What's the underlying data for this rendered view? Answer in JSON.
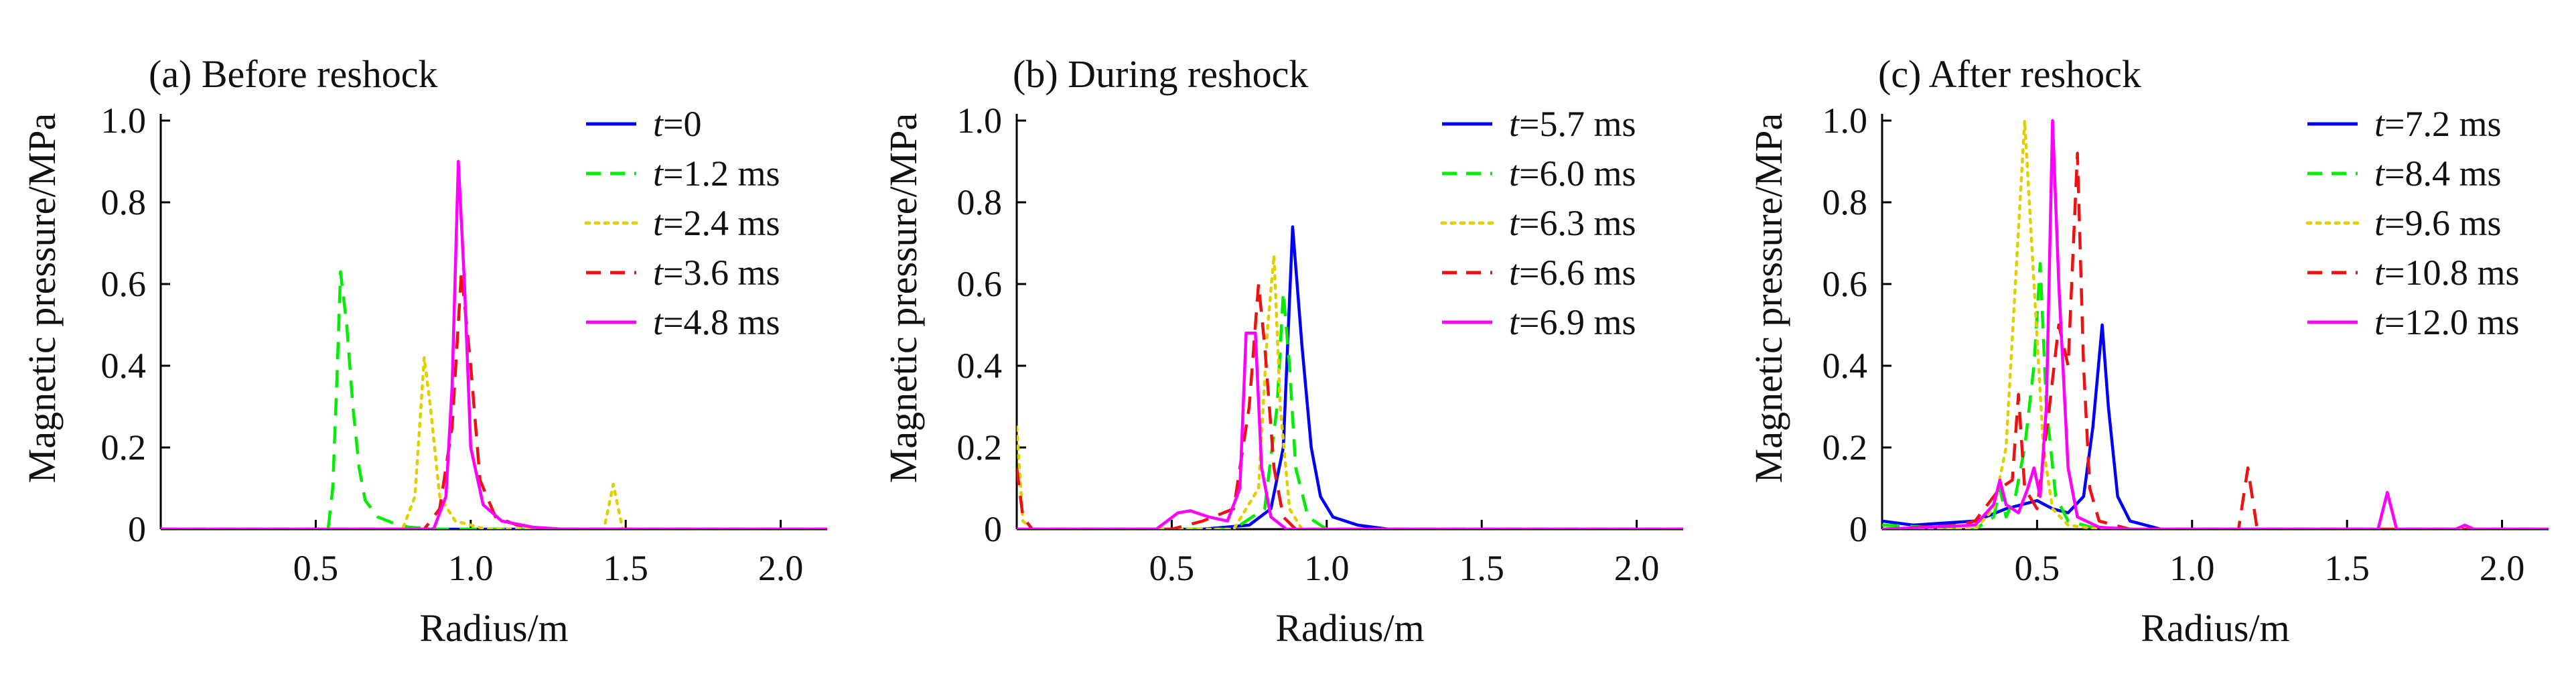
{
  "chart_data": [
    {
      "type": "line",
      "title": "(a) Before reshock",
      "xlabel": "Radius/m",
      "ylabel": "Magnetic pressure/MPa",
      "xlim": [
        0,
        2.15
      ],
      "ylim": [
        0,
        1.0
      ],
      "xticks": [
        0.5,
        1.0,
        1.5,
        2.0
      ],
      "xtick_labels": [
        "0.5",
        "1.0",
        "1.5",
        "2.0"
      ],
      "yticks": [
        0,
        0.2,
        0.4,
        0.6,
        0.8,
        1.0
      ],
      "ytick_labels": [
        "0",
        "0.2",
        "0.4",
        "0.6",
        "0.8",
        "1.0"
      ],
      "legend_position": "top-right",
      "series": [
        {
          "name": "t=0",
          "t": "t",
          "rest": "=0",
          "color": "#0000ff",
          "dash": "solid",
          "points": [
            [
              0,
              0
            ],
            [
              0.5,
              0
            ],
            [
              0.9,
              0
            ],
            [
              2.15,
              0
            ]
          ]
        },
        {
          "name": "t=1.2 ms",
          "t": "t",
          "rest": "=1.2 ms",
          "color": "#00ee00",
          "dash": "dash",
          "points": [
            [
              0,
              0
            ],
            [
              0.54,
              0
            ],
            [
              0.555,
              0.1
            ],
            [
              0.57,
              0.4
            ],
            [
              0.58,
              0.63
            ],
            [
              0.6,
              0.5
            ],
            [
              0.62,
              0.3
            ],
            [
              0.64,
              0.15
            ],
            [
              0.66,
              0.07
            ],
            [
              0.7,
              0.03
            ],
            [
              0.75,
              0.015
            ],
            [
              0.8,
              0.005
            ],
            [
              0.9,
              0
            ],
            [
              2.15,
              0
            ]
          ]
        },
        {
          "name": "t=2.4 ms",
          "t": "t",
          "rest": "=2.4 ms",
          "color": "#e0d000",
          "dash": "dot",
          "points": [
            [
              0,
              0
            ],
            [
              0.78,
              0
            ],
            [
              0.82,
              0.08
            ],
            [
              0.85,
              0.42
            ],
            [
              0.87,
              0.3
            ],
            [
              0.9,
              0.08
            ],
            [
              0.95,
              0.02
            ],
            [
              1.05,
              0
            ],
            [
              1.43,
              0
            ],
            [
              1.46,
              0.11
            ],
            [
              1.49,
              0
            ],
            [
              2.15,
              0
            ]
          ]
        },
        {
          "name": "t=3.6 ms",
          "t": "t",
          "rest": "=3.6 ms",
          "color": "#ee1111",
          "dash": "dash",
          "points": [
            [
              0,
              0
            ],
            [
              0.85,
              0
            ],
            [
              0.9,
              0.05
            ],
            [
              0.94,
              0.25
            ],
            [
              0.97,
              0.63
            ],
            [
              1.0,
              0.4
            ],
            [
              1.03,
              0.12
            ],
            [
              1.08,
              0.03
            ],
            [
              1.15,
              0.01
            ],
            [
              1.25,
              0
            ],
            [
              2.15,
              0
            ]
          ]
        },
        {
          "name": "t=4.8 ms",
          "t": "t",
          "rest": "=4.8 ms",
          "color": "#ff00ff",
          "dash": "solid",
          "points": [
            [
              0,
              0
            ],
            [
              0.88,
              0
            ],
            [
              0.92,
              0.08
            ],
            [
              0.94,
              0.35
            ],
            [
              0.96,
              0.9
            ],
            [
              0.98,
              0.6
            ],
            [
              1.0,
              0.2
            ],
            [
              1.04,
              0.06
            ],
            [
              1.1,
              0.02
            ],
            [
              1.2,
              0.005
            ],
            [
              1.3,
              0
            ],
            [
              2.15,
              0
            ]
          ]
        }
      ]
    },
    {
      "type": "line",
      "title": "(b) During reshock",
      "xlabel": "Radius/m",
      "ylabel": "Magnetic pressure/MPa",
      "xlim": [
        0,
        2.15
      ],
      "ylim": [
        0,
        1.0
      ],
      "xticks": [
        0.5,
        1.0,
        1.5,
        2.0
      ],
      "xtick_labels": [
        "0.5",
        "1.0",
        "1.5",
        "2.0"
      ],
      "yticks": [
        0,
        0.2,
        0.4,
        0.6,
        0.8,
        1.0
      ],
      "ytick_labels": [
        "0",
        "0.2",
        "0.4",
        "0.6",
        "0.8",
        "1.0"
      ],
      "legend_position": "top-right",
      "series": [
        {
          "name": "t=5.7 ms",
          "t": "t",
          "rest": "=5.7 ms",
          "color": "#0000ff",
          "dash": "solid",
          "points": [
            [
              0,
              0
            ],
            [
              0.6,
              0
            ],
            [
              0.75,
              0.01
            ],
            [
              0.82,
              0.05
            ],
            [
              0.86,
              0.2
            ],
            [
              0.89,
              0.74
            ],
            [
              0.92,
              0.45
            ],
            [
              0.95,
              0.2
            ],
            [
              0.98,
              0.08
            ],
            [
              1.02,
              0.03
            ],
            [
              1.1,
              0.01
            ],
            [
              1.2,
              0
            ],
            [
              2.15,
              0
            ]
          ]
        },
        {
          "name": "t=6.0 ms",
          "t": "t",
          "rest": "=6.0 ms",
          "color": "#00ee00",
          "dash": "dash",
          "points": [
            [
              0,
              0
            ],
            [
              0.7,
              0
            ],
            [
              0.8,
              0.05
            ],
            [
              0.84,
              0.3
            ],
            [
              0.86,
              0.58
            ],
            [
              0.88,
              0.4
            ],
            [
              0.9,
              0.15
            ],
            [
              0.94,
              0.03
            ],
            [
              1.0,
              0
            ],
            [
              2.15,
              0
            ]
          ]
        },
        {
          "name": "t=6.3 ms",
          "t": "t",
          "rest": "=6.3 ms",
          "color": "#e0d000",
          "dash": "dot",
          "points": [
            [
              0,
              0.25
            ],
            [
              0.02,
              0.02
            ],
            [
              0.05,
              0
            ],
            [
              0.7,
              0
            ],
            [
              0.78,
              0.1
            ],
            [
              0.81,
              0.5
            ],
            [
              0.83,
              0.67
            ],
            [
              0.85,
              0.3
            ],
            [
              0.88,
              0.05
            ],
            [
              0.92,
              0
            ],
            [
              2.15,
              0
            ]
          ]
        },
        {
          "name": "t=6.6 ms",
          "t": "t",
          "rest": "=6.6 ms",
          "color": "#ee1111",
          "dash": "dash",
          "points": [
            [
              0,
              0.15
            ],
            [
              0.02,
              0.03
            ],
            [
              0.05,
              0
            ],
            [
              0.5,
              0
            ],
            [
              0.6,
              0.02
            ],
            [
              0.7,
              0.05
            ],
            [
              0.75,
              0.3
            ],
            [
              0.78,
              0.6
            ],
            [
              0.8,
              0.45
            ],
            [
              0.83,
              0.15
            ],
            [
              0.86,
              0.03
            ],
            [
              0.9,
              0
            ],
            [
              2.15,
              0
            ]
          ]
        },
        {
          "name": "t=6.9 ms",
          "t": "t",
          "rest": "=6.9 ms",
          "color": "#ff00ff",
          "dash": "solid",
          "points": [
            [
              0,
              0
            ],
            [
              0.45,
              0
            ],
            [
              0.52,
              0.04
            ],
            [
              0.56,
              0.045
            ],
            [
              0.62,
              0.03
            ],
            [
              0.68,
              0.02
            ],
            [
              0.72,
              0.1
            ],
            [
              0.74,
              0.48
            ],
            [
              0.77,
              0.48
            ],
            [
              0.79,
              0.15
            ],
            [
              0.82,
              0.03
            ],
            [
              0.87,
              0
            ],
            [
              2.15,
              0
            ]
          ]
        }
      ]
    },
    {
      "type": "line",
      "title": "(c) After reshock",
      "xlabel": "Radius/m",
      "ylabel": "Magnetic pressure/MPa",
      "xlim": [
        0,
        2.15
      ],
      "ylim": [
        0,
        1.0
      ],
      "xticks": [
        0.5,
        1.0,
        1.5,
        2.0
      ],
      "xtick_labels": [
        "0.5",
        "1.0",
        "1.5",
        "2.0"
      ],
      "yticks": [
        0,
        0.2,
        0.4,
        0.6,
        0.8,
        1.0
      ],
      "ytick_labels": [
        "0",
        "0.2",
        "0.4",
        "0.6",
        "0.8",
        "1.0"
      ],
      "legend_position": "top-right",
      "series": [
        {
          "name": "t=7.2 ms",
          "t": "t",
          "rest": "=7.2 ms",
          "color": "#0000ff",
          "dash": "solid",
          "points": [
            [
              0,
              0.02
            ],
            [
              0.1,
              0.01
            ],
            [
              0.3,
              0.02
            ],
            [
              0.4,
              0.05
            ],
            [
              0.5,
              0.07
            ],
            [
              0.55,
              0.05
            ],
            [
              0.6,
              0.04
            ],
            [
              0.65,
              0.08
            ],
            [
              0.68,
              0.25
            ],
            [
              0.71,
              0.5
            ],
            [
              0.73,
              0.3
            ],
            [
              0.76,
              0.08
            ],
            [
              0.8,
              0.02
            ],
            [
              0.9,
              0
            ],
            [
              2.15,
              0
            ]
          ]
        },
        {
          "name": "t=8.4 ms",
          "t": "t",
          "rest": "=8.4 ms",
          "color": "#00ee00",
          "dash": "dash",
          "points": [
            [
              0,
              0.01
            ],
            [
              0.3,
              0
            ],
            [
              0.36,
              0.03
            ],
            [
              0.38,
              0.1
            ],
            [
              0.4,
              0.03
            ],
            [
              0.43,
              0.08
            ],
            [
              0.46,
              0.2
            ],
            [
              0.49,
              0.4
            ],
            [
              0.51,
              0.65
            ],
            [
              0.53,
              0.3
            ],
            [
              0.56,
              0.08
            ],
            [
              0.6,
              0.02
            ],
            [
              0.7,
              0
            ],
            [
              2.15,
              0
            ]
          ]
        },
        {
          "name": "t=9.6 ms",
          "t": "t",
          "rest": "=9.6 ms",
          "color": "#e0d000",
          "dash": "dot",
          "points": [
            [
              0,
              0
            ],
            [
              0.3,
              0
            ],
            [
              0.36,
              0.05
            ],
            [
              0.4,
              0.2
            ],
            [
              0.43,
              0.6
            ],
            [
              0.46,
              1.0
            ],
            [
              0.49,
              0.6
            ],
            [
              0.52,
              0.2
            ],
            [
              0.55,
              0.05
            ],
            [
              0.6,
              0.01
            ],
            [
              0.7,
              0
            ],
            [
              2.15,
              0
            ]
          ]
        },
        {
          "name": "t=10.8 ms",
          "t": "t",
          "rest": "=10.8 ms",
          "color": "#ee1111",
          "dash": "dash",
          "points": [
            [
              0,
              0
            ],
            [
              0.25,
              0.01
            ],
            [
              0.3,
              0.02
            ],
            [
              0.36,
              0.08
            ],
            [
              0.38,
              0.1
            ],
            [
              0.42,
              0.12
            ],
            [
              0.44,
              0.33
            ],
            [
              0.46,
              0.1
            ],
            [
              0.5,
              0.05
            ],
            [
              0.54,
              0.3
            ],
            [
              0.57,
              0.5
            ],
            [
              0.6,
              0.4
            ],
            [
              0.63,
              0.92
            ],
            [
              0.65,
              0.4
            ],
            [
              0.67,
              0.1
            ],
            [
              0.7,
              0.02
            ],
            [
              0.8,
              0
            ],
            [
              1.15,
              0
            ],
            [
              1.18,
              0.15
            ],
            [
              1.21,
              0
            ],
            [
              2.15,
              0
            ]
          ]
        },
        {
          "name": "t=12.0 ms",
          "t": "t",
          "rest": "=12.0 ms",
          "color": "#ff00ff",
          "dash": "solid",
          "points": [
            [
              0,
              0
            ],
            [
              0.3,
              0.01
            ],
            [
              0.36,
              0.06
            ],
            [
              0.38,
              0.12
            ],
            [
              0.4,
              0.06
            ],
            [
              0.44,
              0.04
            ],
            [
              0.47,
              0.1
            ],
            [
              0.49,
              0.15
            ],
            [
              0.51,
              0.08
            ],
            [
              0.53,
              0.3
            ],
            [
              0.55,
              1.0
            ],
            [
              0.57,
              0.6
            ],
            [
              0.6,
              0.15
            ],
            [
              0.63,
              0.03
            ],
            [
              0.7,
              0.005
            ],
            [
              0.8,
              0
            ],
            [
              1.6,
              0
            ],
            [
              1.63,
              0.09
            ],
            [
              1.66,
              0
            ],
            [
              1.85,
              0
            ],
            [
              1.88,
              0.01
            ],
            [
              1.91,
              0
            ],
            [
              2.15,
              0
            ]
          ]
        }
      ]
    }
  ]
}
